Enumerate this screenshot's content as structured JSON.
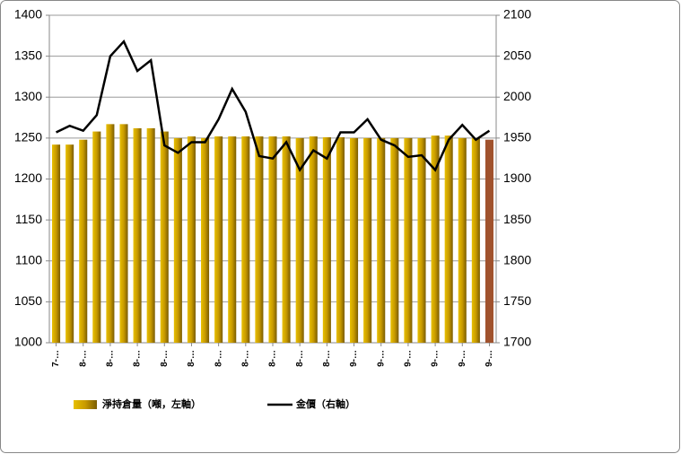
{
  "chart_data": {
    "type": "bar_line",
    "categories": [
      "7-…",
      null,
      "8-…",
      null,
      "8-…",
      null,
      "8-…",
      null,
      "8-…",
      null,
      "8-…",
      null,
      "8-…",
      null,
      "8-…",
      null,
      "8-…",
      null,
      "8-…",
      null,
      "8-…",
      null,
      "9-…",
      null,
      "9-…",
      null,
      "9-…",
      null,
      "9-…",
      null,
      "9-…",
      null,
      "9-…"
    ],
    "series": [
      {
        "name": "淨持倉量（噸，左軸）",
        "color": "#d4a400",
        "highlight_color": "#a0522d",
        "type": "bar",
        "values": [
          1242,
          1242,
          1248,
          1258,
          1267,
          1267,
          1262,
          1262,
          1258,
          1250,
          1252,
          1250,
          1252,
          1252,
          1252,
          1252,
          1252,
          1252,
          1250,
          1252,
          1251,
          1251,
          1250,
          1250,
          1250,
          1250,
          1250,
          1250,
          1253,
          1253,
          1250,
          1250,
          1248
        ]
      },
      {
        "name": "金價（右軸）",
        "color": "#000000",
        "type": "line",
        "axis": "y2",
        "values": [
          1957,
          1965,
          1959,
          1978,
          2050,
          2068,
          2032,
          2045,
          1941,
          1932,
          1945,
          1945,
          1973,
          2010,
          1982,
          1928,
          1925,
          1945,
          1911,
          1935,
          1925,
          1957,
          1957,
          1973,
          1948,
          1941,
          1927,
          1929,
          1911,
          1948,
          1966,
          1948,
          1959
        ]
      }
    ],
    "ylim": [
      1000,
      1400
    ],
    "yticks": [
      1000,
      1050,
      1100,
      1150,
      1200,
      1250,
      1300,
      1350,
      1400
    ],
    "y2lim": [
      1700,
      2100
    ],
    "y2ticks": [
      1700,
      1750,
      1800,
      1850,
      1900,
      1950,
      2000,
      2050,
      2100
    ],
    "grid": true
  }
}
